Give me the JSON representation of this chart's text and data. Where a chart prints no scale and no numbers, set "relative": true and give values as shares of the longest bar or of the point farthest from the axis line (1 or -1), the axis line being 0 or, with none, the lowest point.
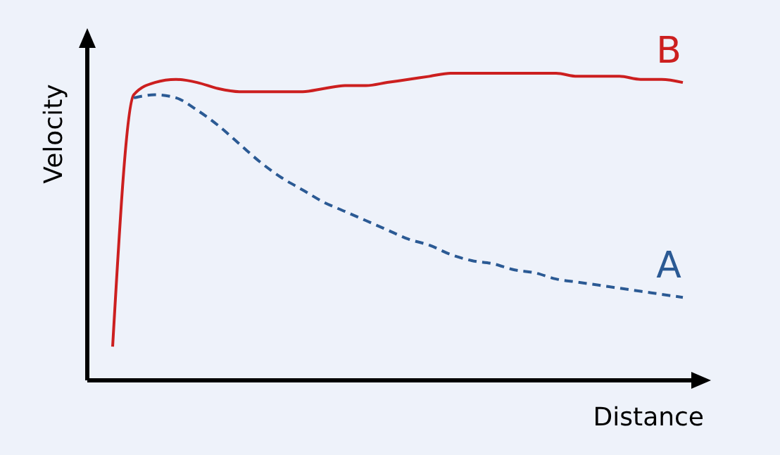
{
  "chart_data": {
    "type": "line",
    "relative": true,
    "xlabel": "Distance",
    "ylabel": "Velocity",
    "categories": [
      null,
      null,
      null,
      null,
      null,
      null,
      null,
      null,
      null,
      null,
      null,
      null,
      null,
      null,
      null,
      null,
      null,
      null,
      null,
      null,
      null,
      null,
      null,
      null,
      null,
      null,
      null,
      null
    ],
    "series": [
      {
        "name": "B",
        "color": "#cc1f1f",
        "line_style": "solid",
        "values": [
          0.11,
          0.93,
          0.97,
          0.98,
          0.97,
          0.95,
          0.94,
          0.94,
          0.94,
          0.94,
          0.95,
          0.96,
          0.96,
          0.97,
          0.98,
          0.99,
          1.0,
          1.0,
          1.0,
          1.0,
          1.0,
          1.0,
          0.99,
          0.99,
          0.99,
          0.98,
          0.98,
          0.97
        ]
      },
      {
        "name": "A",
        "color": "#2b5a94",
        "line_style": "dashed",
        "values": [
          null,
          0.92,
          0.93,
          0.92,
          0.88,
          0.83,
          0.77,
          0.71,
          0.66,
          0.62,
          0.58,
          0.55,
          0.52,
          0.49,
          0.46,
          0.44,
          0.41,
          0.39,
          0.38,
          0.36,
          0.35,
          0.33,
          0.32,
          0.31,
          0.3,
          0.29,
          0.28,
          0.27
        ]
      }
    ]
  }
}
